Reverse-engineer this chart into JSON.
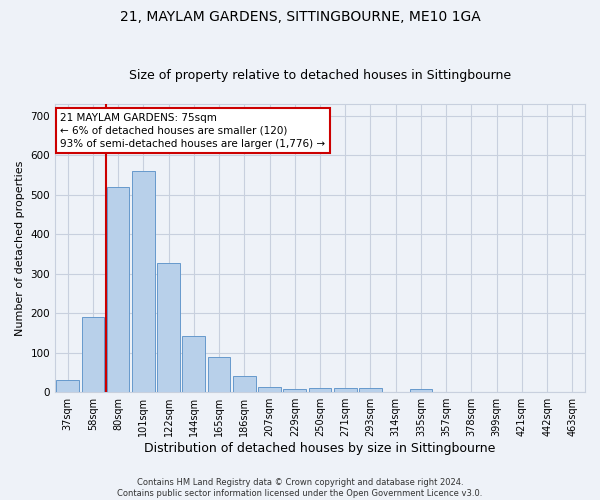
{
  "title": "21, MAYLAM GARDENS, SITTINGBOURNE, ME10 1GA",
  "subtitle": "Size of property relative to detached houses in Sittingbourne",
  "xlabel": "Distribution of detached houses by size in Sittingbourne",
  "ylabel": "Number of detached properties",
  "footnote": "Contains HM Land Registry data © Crown copyright and database right 2024.\nContains public sector information licensed under the Open Government Licence v3.0.",
  "categories": [
    "37sqm",
    "58sqm",
    "80sqm",
    "101sqm",
    "122sqm",
    "144sqm",
    "165sqm",
    "186sqm",
    "207sqm",
    "229sqm",
    "250sqm",
    "271sqm",
    "293sqm",
    "314sqm",
    "335sqm",
    "357sqm",
    "378sqm",
    "399sqm",
    "421sqm",
    "442sqm",
    "463sqm"
  ],
  "values": [
    30,
    190,
    520,
    560,
    328,
    143,
    88,
    40,
    12,
    8,
    10,
    10,
    10,
    0,
    8,
    0,
    0,
    0,
    0,
    0,
    0
  ],
  "bar_color": "#b8d0ea",
  "bar_edge_color": "#6699cc",
  "bar_edge_width": 0.7,
  "vline_x": 1.5,
  "vline_color": "#cc0000",
  "annotation_text": "21 MAYLAM GARDENS: 75sqm\n← 6% of detached houses are smaller (120)\n93% of semi-detached houses are larger (1,776) →",
  "annotation_box_color": "#cc0000",
  "ylim": [
    0,
    730
  ],
  "yticks": [
    0,
    100,
    200,
    300,
    400,
    500,
    600,
    700
  ],
  "bg_color": "#eef2f8",
  "plot_bg": "#eef2f8",
  "grid_color": "#c8d0de",
  "title_fontsize": 10,
  "subtitle_fontsize": 9,
  "ylabel_fontsize": 8,
  "xlabel_fontsize": 9,
  "tick_fontsize": 7,
  "footnote_fontsize": 6
}
